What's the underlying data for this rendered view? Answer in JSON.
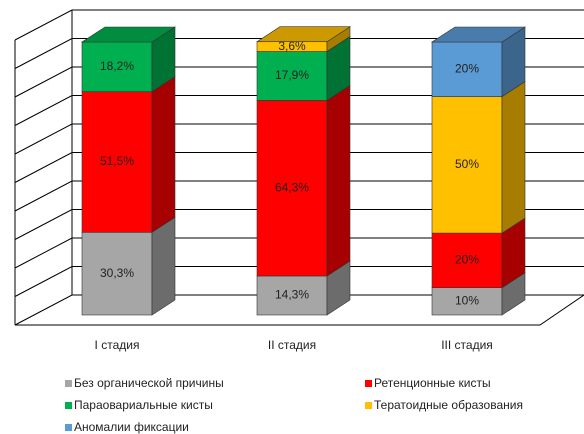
{
  "chart_data": {
    "type": "bar3d_stacked",
    "categories": [
      "I стадия",
      "II стадия",
      "III стадия"
    ],
    "series": [
      {
        "name": "Без органической причины",
        "color": "#a6a6a6",
        "values": [
          30.3,
          14.3,
          10
        ],
        "value_labels": [
          "30,3%",
          "14,3%",
          "10%"
        ]
      },
      {
        "name": "Ретенционные кисты",
        "color": "#ff0000",
        "values": [
          51.5,
          64.3,
          20
        ],
        "value_labels": [
          "51,5%",
          "64,3%",
          "20%"
        ]
      },
      {
        "name": "Параовариальные кисты",
        "color": "#00b050",
        "values": [
          18.2,
          17.9,
          null
        ],
        "value_labels": [
          "18,2%",
          "17,9%",
          null
        ]
      },
      {
        "name": "Тератоидные образования",
        "color": "#ffc000",
        "values": [
          null,
          3.6,
          50
        ],
        "value_labels": [
          null,
          "3,6%",
          "50%"
        ]
      },
      {
        "name": "Аномалии фиксации",
        "color": "#5b9bd5",
        "values": [
          null,
          null,
          20
        ],
        "value_labels": [
          null,
          null,
          "20%"
        ]
      }
    ],
    "ylim": [
      0,
      100
    ],
    "yticks": [
      0,
      10,
      20,
      30,
      40,
      50,
      60,
      70,
      80,
      90,
      100
    ],
    "grid": true
  }
}
